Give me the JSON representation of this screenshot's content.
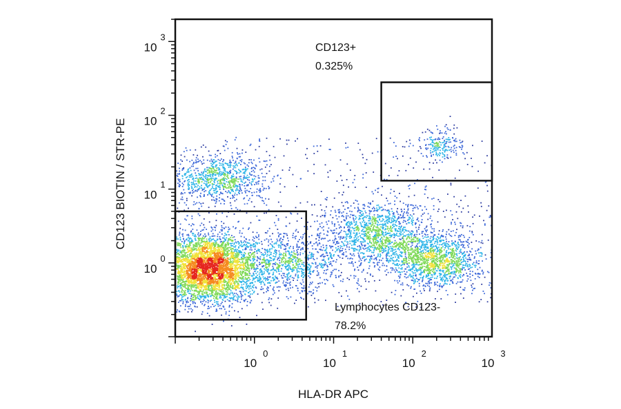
{
  "chart_data": {
    "type": "scatter",
    "subtype": "flow-cytometry-density-dot-plot",
    "xlabel": "HLA-DR APC",
    "ylabel": "CD123 BIOTIN / STR-PE",
    "x_scale": "log",
    "y_scale": "log",
    "xlim": [
      0.1,
      1000
    ],
    "ylim": [
      0.1,
      2000
    ],
    "x_ticks": [
      {
        "base": "10",
        "exp": "0",
        "value": 1
      },
      {
        "base": "10",
        "exp": "1",
        "value": 10
      },
      {
        "base": "10",
        "exp": "2",
        "value": 100
      },
      {
        "base": "10",
        "exp": "3",
        "value": 1000
      }
    ],
    "y_ticks": [
      {
        "base": "10",
        "exp": "0",
        "value": 1
      },
      {
        "base": "10",
        "exp": "1",
        "value": 10
      },
      {
        "base": "10",
        "exp": "2",
        "value": 100
      },
      {
        "base": "10",
        "exp": "3",
        "value": 1000
      }
    ],
    "grid": false,
    "legend": "none",
    "color_scale": [
      "#2b3a9f",
      "#3a66d8",
      "#2fb5e8",
      "#7ed957",
      "#f2e23a",
      "#f58a1f",
      "#e5261f"
    ],
    "populations": [
      {
        "center": [
          0.25,
          0.85
        ],
        "spread": [
          0.3,
          0.22
        ],
        "weight": 0.45,
        "note": "dense core"
      },
      {
        "center": [
          0.35,
          14
        ],
        "spread": [
          0.3,
          0.17
        ],
        "weight": 0.09
      },
      {
        "center": [
          35,
          2.5
        ],
        "spread": [
          0.33,
          0.22
        ],
        "weight": 0.14
      },
      {
        "center": [
          200,
          1.1
        ],
        "spread": [
          0.28,
          0.18
        ],
        "weight": 0.14
      },
      {
        "center": [
          2.5,
          1.0
        ],
        "spread": [
          0.35,
          0.2
        ],
        "weight": 0.1
      },
      {
        "center": [
          230,
          40
        ],
        "spread": [
          0.13,
          0.12
        ],
        "weight": 0.02
      }
    ],
    "gates": [
      {
        "name": "Lymphocytes CD123-",
        "percent_label": "78.2%",
        "x_range": [
          0.1,
          4.5
        ],
        "y_range": [
          0.17,
          5.0
        ]
      },
      {
        "name": "CD123+",
        "percent_label": "0.325%",
        "x_range": [
          40,
          1000
        ],
        "y_range": [
          13,
          280
        ]
      }
    ]
  }
}
